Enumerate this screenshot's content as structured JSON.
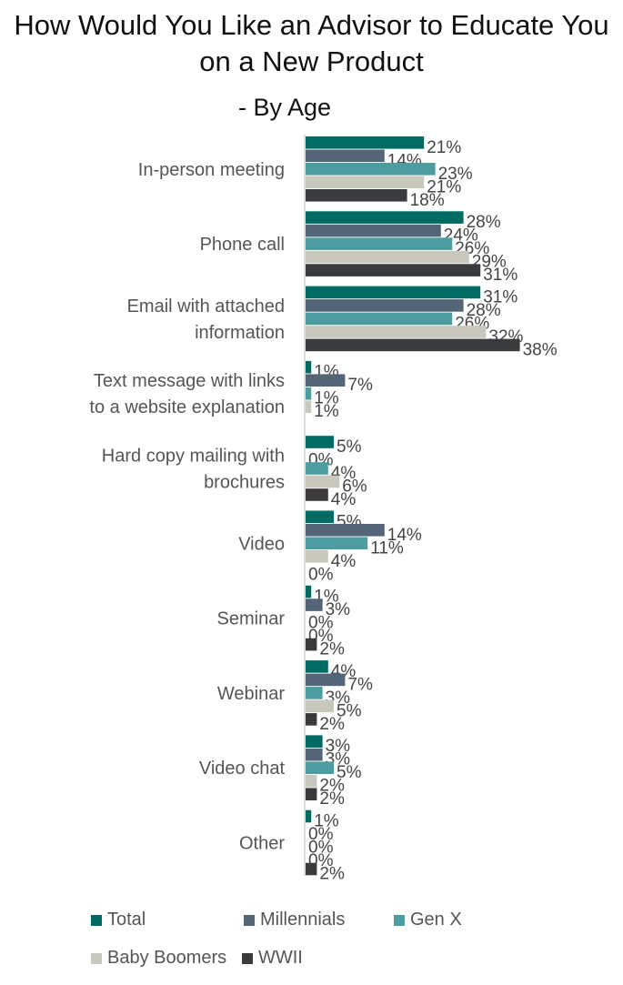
{
  "chart_data": {
    "type": "bar",
    "orientation": "horizontal",
    "title": "How Would You Like an Advisor to Educate You on a New Product",
    "subtitle": "- By Age",
    "categories": [
      "In-person meeting",
      "Phone call",
      "Email with attached information",
      "Text message with links to a website explanation",
      "Hard copy mailing with brochures",
      "Video",
      "Seminar",
      "Webinar",
      "Video chat",
      "Other"
    ],
    "category_lines": [
      [
        "In-person meeting"
      ],
      [
        "Phone call"
      ],
      [
        "Email with attached",
        "information"
      ],
      [
        "Text message with links",
        "to a website explanation"
      ],
      [
        "Hard copy mailing with",
        "brochures"
      ],
      [
        "Video"
      ],
      [
        "Seminar"
      ],
      [
        "Webinar"
      ],
      [
        "Video chat"
      ],
      [
        "Other"
      ]
    ],
    "series": [
      {
        "name": "Total",
        "color": "#006B63",
        "values": [
          21,
          28,
          31,
          1,
          5,
          5,
          1,
          4,
          3,
          1
        ]
      },
      {
        "name": "Millennials",
        "color": "#536577",
        "values": [
          14,
          24,
          28,
          7,
          0,
          14,
          3,
          7,
          3,
          0
        ]
      },
      {
        "name": "Gen X",
        "color": "#4C9CA0",
        "values": [
          23,
          26,
          26,
          1,
          4,
          11,
          0,
          3,
          5,
          0
        ]
      },
      {
        "name": "Baby Boomers",
        "color": "#C9C8BC",
        "values": [
          21,
          29,
          32,
          1,
          6,
          4,
          0,
          5,
          2,
          0
        ]
      },
      {
        "name": "WWII",
        "color": "#3A3B3D",
        "values": [
          18,
          31,
          38,
          null,
          4,
          0,
          2,
          2,
          2,
          2
        ]
      }
    ],
    "value_suffix": "%",
    "xlim": [
      0,
      40
    ],
    "legend_position": "bottom",
    "grid": false
  }
}
